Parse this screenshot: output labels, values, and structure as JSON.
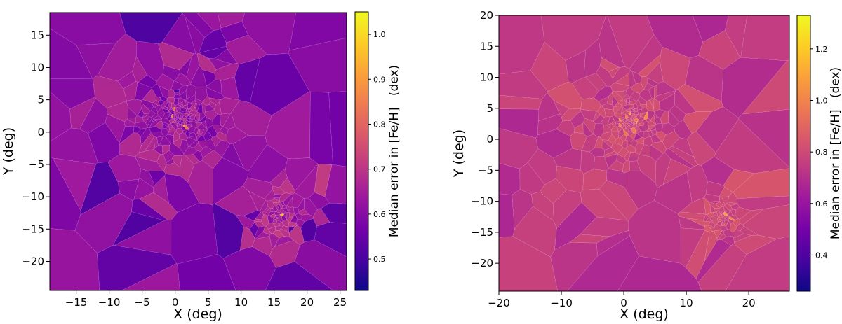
{
  "chart_data": [
    {
      "type": "voronoi-map",
      "title": "",
      "xlabel": "X (deg)",
      "ylabel": "Y (deg)",
      "xlim": [
        -19,
        26
      ],
      "ylim": [
        -24.5,
        18.5
      ],
      "xticks": [
        -15,
        -10,
        -5,
        0,
        5,
        10,
        15,
        20,
        25
      ],
      "yticks": [
        -20,
        -15,
        -10,
        -5,
        0,
        5,
        10,
        15
      ],
      "colorbar": {
        "label": "Median error in [Fe/H]   (dex)",
        "range": [
          0.43,
          1.05
        ],
        "ticks": [
          0.5,
          0.6,
          0.7,
          0.8,
          0.9,
          1.0
        ],
        "cmap": "plasma"
      },
      "clusters": [
        {
          "cx": 1,
          "cy": 2,
          "spread": 9,
          "count": 260,
          "value": 0.63
        },
        {
          "cx": 16,
          "cy": -13,
          "spread": 5,
          "count": 90,
          "value": 0.66
        }
      ],
      "outer_value": 0.58
    },
    {
      "type": "voronoi-map",
      "title": "",
      "xlabel": "X (deg)",
      "ylabel": "Y (deg)",
      "xlim": [
        -20,
        26.5
      ],
      "ylim": [
        -24.5,
        20
      ],
      "xticks": [
        -20,
        -10,
        0,
        10,
        20
      ],
      "yticks": [
        -20,
        -15,
        -10,
        -5,
        0,
        5,
        10,
        15,
        20
      ],
      "colorbar": {
        "label": "Median error in [Fe/H]   (dex)",
        "range": [
          0.26,
          1.33
        ],
        "ticks": [
          0.4,
          0.6,
          0.8,
          1.0,
          1.2
        ],
        "cmap": "plasma"
      },
      "clusters": [
        {
          "cx": 1,
          "cy": 3,
          "spread": 9,
          "count": 240,
          "value": 0.78
        },
        {
          "cx": 16,
          "cy": -13,
          "spread": 5,
          "count": 80,
          "value": 0.8
        }
      ],
      "outer_value": 0.74
    }
  ],
  "palette": {
    "plasma": [
      "#0d0887",
      "#47039f",
      "#7301a8",
      "#9c179e",
      "#bd3786",
      "#d8576b",
      "#ed7953",
      "#fa9e3b",
      "#fdca26",
      "#f0f921"
    ]
  }
}
